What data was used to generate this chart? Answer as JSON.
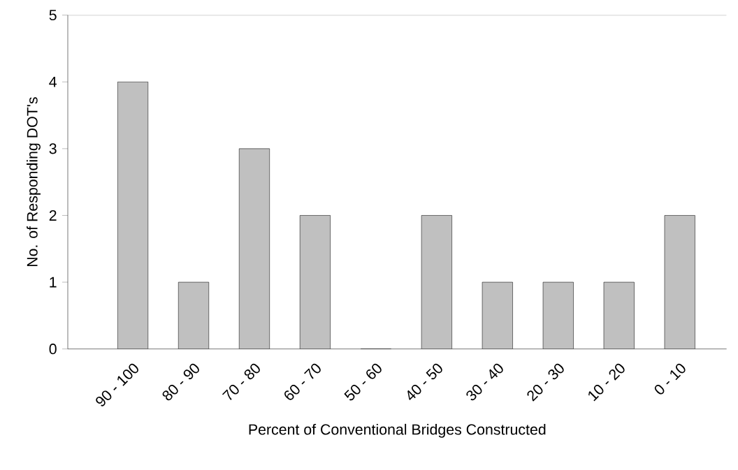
{
  "chart_data": {
    "type": "bar",
    "xlabel": "Percent of Conventional Bridges Constructed",
    "ylabel": "No. of Responding DOT's",
    "categories": [
      "90 - 100",
      "80 - 90",
      "70 - 80",
      "60 - 70",
      "50 - 60",
      "40 - 50",
      "30 - 40",
      "20 - 30",
      "10 - 20",
      "0 - 10"
    ],
    "values": [
      4,
      1,
      3,
      2,
      0,
      2,
      1,
      1,
      1,
      2
    ],
    "color": "#c0c0c0",
    "ylim": [
      0,
      5
    ],
    "yticks": [
      0,
      1,
      2,
      3,
      4,
      5
    ]
  }
}
